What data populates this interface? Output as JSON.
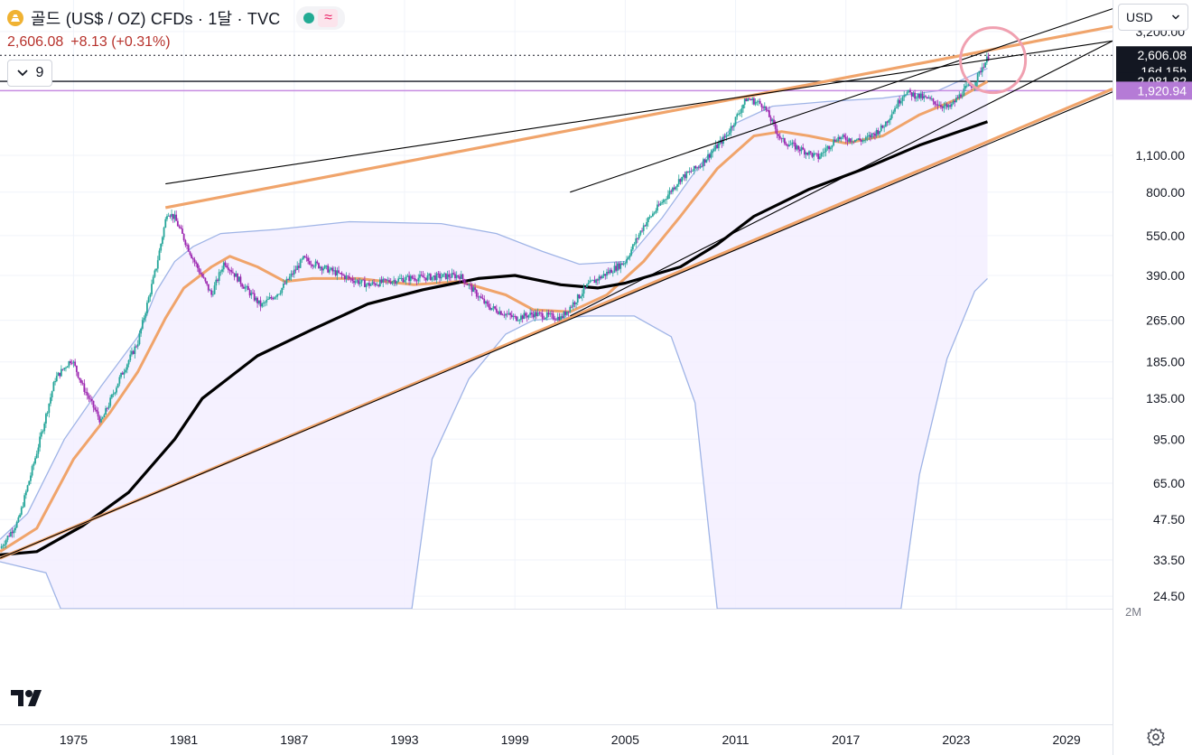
{
  "header": {
    "title": "골드 (US$ / OZ) CFDs · 1달 · TVC",
    "price": "2,606.08",
    "change": "+8.13 (+0.31%)",
    "indicator_count": "9",
    "currency": "USD",
    "icon": "gold-coin-icon"
  },
  "colors": {
    "orange": "#f0a46b",
    "blue_band": "#9fb4e6",
    "black": "#000000",
    "purple": "#c68be0",
    "candle_up": "#26a69a",
    "candle_down": "#9c27b0",
    "fill": "#f3efff"
  },
  "chart_data": {
    "type": "line",
    "y_scale": "log",
    "ylim": [
      22,
      4200
    ],
    "xlim": [
      1971.0,
      2031.5
    ],
    "x_ticks": [
      "1975",
      "1981",
      "1987",
      "1993",
      "1999",
      "2005",
      "2011",
      "2017",
      "2023",
      "2029"
    ],
    "y_ticks": [
      "3,200.00",
      "1,100.00",
      "800.00",
      "550.00",
      "390.00",
      "265.00",
      "185.00",
      "135.00",
      "95.00",
      "65.00",
      "47.50",
      "33.50",
      "24.50"
    ],
    "volume_label": "2M",
    "price_labels": [
      {
        "value": 2606.08,
        "text": "2,606.08",
        "sub": "16d 15h",
        "style": "dark"
      },
      {
        "value": 2081.82,
        "text": "2,081.82",
        "style": "dark"
      },
      {
        "value": 1920.94,
        "text": "1,920.94",
        "style": "purple"
      }
    ],
    "horizontal_lines": [
      {
        "value": 2606.08,
        "style": "dotted"
      },
      {
        "value": 2081.82,
        "style": "solid"
      },
      {
        "value": 1920.94,
        "style": "purple"
      }
    ],
    "price_series": [
      [
        1971.0,
        37
      ],
      [
        1972.0,
        47
      ],
      [
        1973.0,
        85
      ],
      [
        1974.0,
        160
      ],
      [
        1974.9,
        190
      ],
      [
        1975.5,
        150
      ],
      [
        1976.5,
        110
      ],
      [
        1977.5,
        160
      ],
      [
        1978.5,
        220
      ],
      [
        1979.5,
        420
      ],
      [
        1980.1,
        680
      ],
      [
        1980.5,
        640
      ],
      [
        1981.5,
        450
      ],
      [
        1982.5,
        330
      ],
      [
        1983.2,
        440
      ],
      [
        1984.2,
        360
      ],
      [
        1985.2,
        300
      ],
      [
        1986.2,
        340
      ],
      [
        1987.5,
        450
      ],
      [
        1988.5,
        420
      ],
      [
        1990.0,
        380
      ],
      [
        1991.0,
        360
      ],
      [
        1993.0,
        380
      ],
      [
        1996.0,
        390
      ],
      [
        1997.5,
        300
      ],
      [
        1999.0,
        270
      ],
      [
        2000.0,
        280
      ],
      [
        2001.5,
        270
      ],
      [
        2003.0,
        360
      ],
      [
        2005.0,
        440
      ],
      [
        2006.0,
        600
      ],
      [
        2008.0,
        900
      ],
      [
        2009.0,
        1000
      ],
      [
        2010.5,
        1300
      ],
      [
        2011.6,
        1800
      ],
      [
        2012.5,
        1700
      ],
      [
        2013.5,
        1250
      ],
      [
        2015.5,
        1080
      ],
      [
        2016.5,
        1280
      ],
      [
        2018.0,
        1250
      ],
      [
        2019.0,
        1400
      ],
      [
        2020.2,
        1900
      ],
      [
        2021.5,
        1780
      ],
      [
        2022.6,
        1650
      ],
      [
        2023.5,
        1950
      ],
      [
        2024.0,
        2050
      ],
      [
        2024.4,
        2350
      ],
      [
        2024.8,
        2606
      ]
    ],
    "orange_ma": [
      [
        1971.0,
        36
      ],
      [
        1973.0,
        44
      ],
      [
        1975.0,
        80
      ],
      [
        1977.0,
        120
      ],
      [
        1978.5,
        170
      ],
      [
        1980.0,
        270
      ],
      [
        1981.0,
        350
      ],
      [
        1982.5,
        420
      ],
      [
        1983.5,
        460
      ],
      [
        1985.0,
        420
      ],
      [
        1986.5,
        370
      ],
      [
        1988.0,
        380
      ],
      [
        1990.5,
        380
      ],
      [
        1993.5,
        360
      ],
      [
        1996.0,
        370
      ],
      [
        1998.5,
        330
      ],
      [
        2000.0,
        290
      ],
      [
        2002.0,
        285
      ],
      [
        2004.0,
        330
      ],
      [
        2006.0,
        440
      ],
      [
        2008.0,
        650
      ],
      [
        2010.0,
        980
      ],
      [
        2012.0,
        1300
      ],
      [
        2013.5,
        1350
      ],
      [
        2015.0,
        1300
      ],
      [
        2017.0,
        1220
      ],
      [
        2019.0,
        1300
      ],
      [
        2021.0,
        1560
      ],
      [
        2023.0,
        1780
      ],
      [
        2024.7,
        2080
      ]
    ],
    "black_ma": [
      [
        1971.0,
        35
      ],
      [
        1973.0,
        36
      ],
      [
        1975.5,
        45
      ],
      [
        1978.0,
        60
      ],
      [
        1980.5,
        95
      ],
      [
        1982.0,
        135
      ],
      [
        1985.0,
        195
      ],
      [
        1988.0,
        245
      ],
      [
        1991.0,
        305
      ],
      [
        1994.0,
        345
      ],
      [
        1997.0,
        380
      ],
      [
        1999.0,
        390
      ],
      [
        2001.5,
        360
      ],
      [
        2003.5,
        350
      ],
      [
        2005.0,
        365
      ],
      [
        2008.0,
        420
      ],
      [
        2010.0,
        510
      ],
      [
        2012.0,
        650
      ],
      [
        2015.0,
        820
      ],
      [
        2018.0,
        980
      ],
      [
        2021.0,
        1200
      ],
      [
        2024.7,
        1470
      ]
    ],
    "band_upper": [
      [
        1971.0,
        40
      ],
      [
        1972.5,
        50
      ],
      [
        1974.5,
        95
      ],
      [
        1976.5,
        150
      ],
      [
        1978.5,
        230
      ],
      [
        1979.5,
        340
      ],
      [
        1980.5,
        440
      ],
      [
        1981.5,
        500
      ],
      [
        1983.0,
        560
      ],
      [
        1986.0,
        580
      ],
      [
        1990.0,
        620
      ],
      [
        1995.0,
        610
      ],
      [
        1998.0,
        560
      ],
      [
        2000.5,
        480
      ],
      [
        2002.5,
        430
      ],
      [
        2005.0,
        440
      ],
      [
        2007.0,
        640
      ],
      [
        2009.0,
        1000
      ],
      [
        2011.0,
        1450
      ],
      [
        2013.0,
        1680
      ],
      [
        2016.0,
        1750
      ],
      [
        2019.0,
        1800
      ],
      [
        2022.0,
        1920
      ],
      [
        2024.7,
        2330
      ]
    ],
    "band_lower": [
      [
        1971.0,
        33
      ],
      [
        1973.5,
        30
      ],
      [
        1974.3,
        22
      ],
      [
        1993.4,
        22
      ],
      [
        1994.5,
        80
      ],
      [
        1996.5,
        160
      ],
      [
        1998.5,
        235
      ],
      [
        2000.0,
        265
      ],
      [
        2003.0,
        275
      ],
      [
        2005.5,
        275
      ],
      [
        2007.5,
        230
      ],
      [
        2008.8,
        130
      ],
      [
        2010.0,
        22
      ],
      [
        2020.0,
        22
      ],
      [
        2021.0,
        70
      ],
      [
        2022.5,
        190
      ],
      [
        2024.0,
        340
      ],
      [
        2024.7,
        380
      ]
    ],
    "trend_lines": [
      {
        "style": "orange",
        "from": [
          1971.0,
          34
        ],
        "to": [
          2031.5,
          1950
        ]
      },
      {
        "style": "black",
        "from": [
          1971.0,
          34
        ],
        "to": [
          2031.5,
          1900
        ]
      },
      {
        "style": "orange",
        "from": [
          1980.0,
          700
        ],
        "to": [
          2031.5,
          3340
        ]
      },
      {
        "style": "black",
        "from": [
          1980.0,
          860
        ],
        "to": [
          2031.5,
          2950
        ]
      },
      {
        "style": "black",
        "from": [
          2002.0,
          800
        ],
        "to": [
          2032.0,
          4000
        ]
      },
      {
        "style": "black",
        "from": [
          2002.0,
          275
        ],
        "to": [
          2031.5,
          2950
        ]
      }
    ],
    "highlight_circle": {
      "x": 2025.0,
      "y": 2500
    }
  }
}
